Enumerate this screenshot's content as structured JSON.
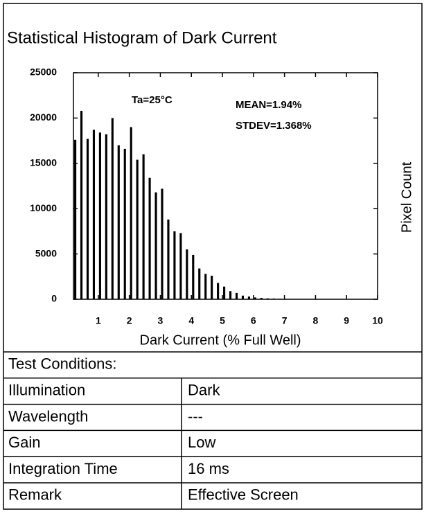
{
  "chart_data": {
    "type": "histogram",
    "title": "Statistical Histogram of Dark Current",
    "xlabel": "Dark Current (% Full Well)",
    "ylabel": "Pixel Count",
    "annotations": [
      "Ta=25°C",
      "MEAN=1.94%",
      "STDEV=1.368%"
    ],
    "bins": [
      0.2,
      0.4,
      0.6,
      0.8,
      1.0,
      1.2,
      1.4,
      1.6,
      1.8,
      2.0,
      2.2,
      2.4,
      2.6,
      2.8,
      3.0,
      3.2,
      3.4,
      3.6,
      3.8,
      4.0,
      4.2,
      4.4,
      4.6,
      4.8,
      5.0,
      5.2,
      5.4,
      5.6,
      5.8,
      6.0,
      6.2,
      6.4,
      6.6,
      6.8,
      7.0,
      7.2,
      7.4,
      7.6,
      7.8,
      8.0,
      8.2
    ],
    "values": [
      17600,
      20800,
      17700,
      18700,
      18400,
      18200,
      20000,
      17000,
      16600,
      19000,
      15400,
      16000,
      13400,
      11800,
      12200,
      8800,
      7500,
      7300,
      5500,
      4900,
      3400,
      2800,
      2600,
      1800,
      1400,
      900,
      700,
      400,
      300,
      200,
      150,
      100,
      80,
      50,
      30,
      20,
      10,
      10,
      0,
      0
    ],
    "color": "#000000",
    "xlim": [
      0.2,
      10
    ],
    "xticks": [
      1,
      2,
      3,
      4,
      5,
      6,
      7,
      8,
      9,
      10
    ],
    "ylim": [
      0,
      25000
    ],
    "yticks": [
      0,
      5000,
      10000,
      15000,
      20000,
      25000
    ]
  },
  "table": {
    "heading": "Test Conditions:",
    "rows": [
      [
        "Illumination",
        "Dark"
      ],
      [
        "Wavelength",
        "---"
      ],
      [
        "Gain",
        "Low"
      ],
      [
        "Integration Time",
        "16 ms"
      ],
      [
        "Remark",
        "Effective Screen"
      ]
    ]
  }
}
